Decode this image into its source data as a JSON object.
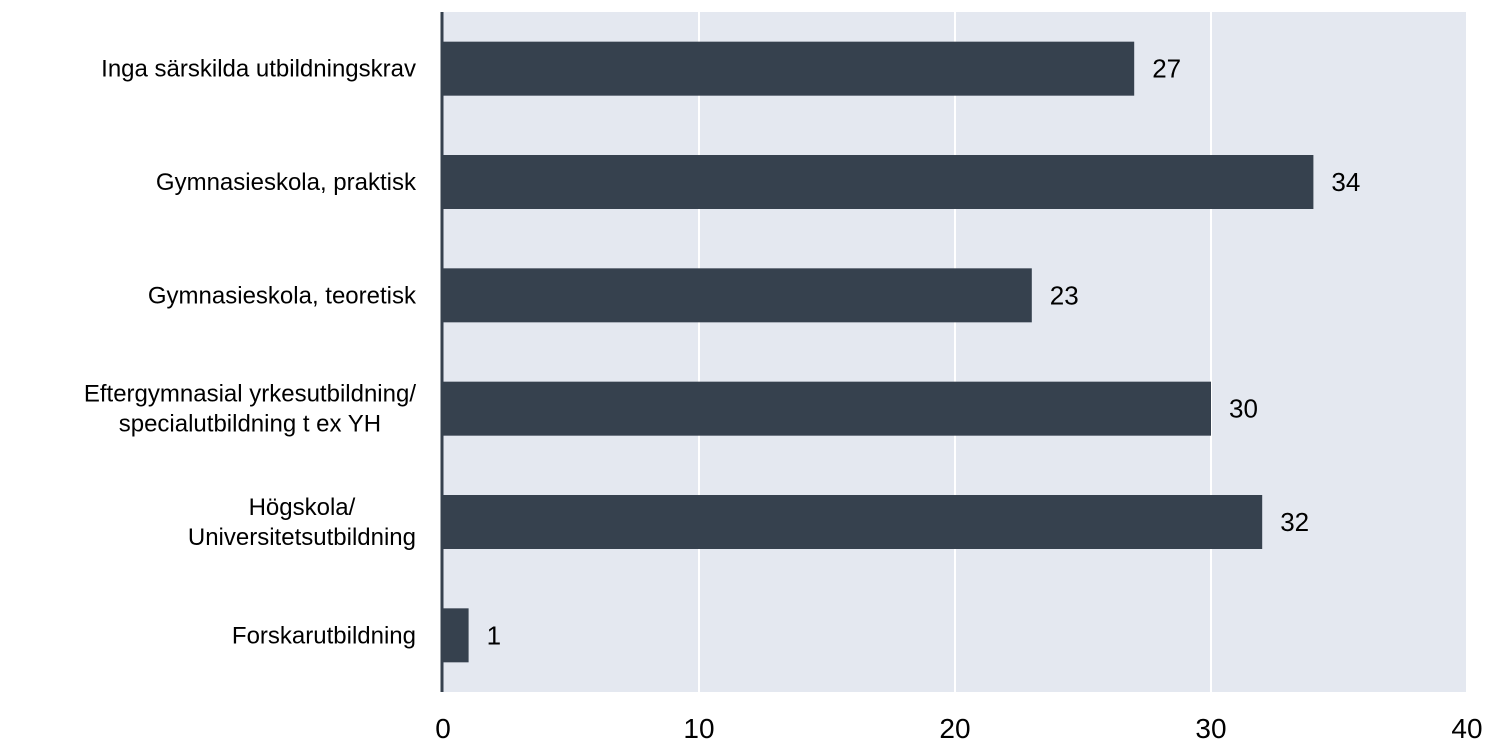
{
  "chart_data": {
    "type": "bar",
    "orientation": "horizontal",
    "categories": [
      [
        "Inga särskilda utbildningskrav"
      ],
      [
        "Gymnasieskola, praktisk"
      ],
      [
        "Gymnasieskola, teoretisk"
      ],
      [
        "Eftergymnasial yrkesutbildning/",
        "specialutbildning t ex YH"
      ],
      [
        "Högskola/",
        "Universitetsutbildning"
      ],
      [
        "Forskarutbildning"
      ]
    ],
    "values": [
      27,
      34,
      23,
      30,
      32,
      1
    ],
    "xticks": [
      "0",
      "10",
      "20",
      "30",
      "40"
    ],
    "xlim": [
      0,
      40
    ],
    "title": "",
    "xlabel": "",
    "ylabel": "",
    "grid": "vertical",
    "legend": "none",
    "colors": {
      "bar": "#36414e",
      "plot_background": "#e4e8f0",
      "gridline": "#ffffff",
      "axis": "#36414e"
    }
  }
}
